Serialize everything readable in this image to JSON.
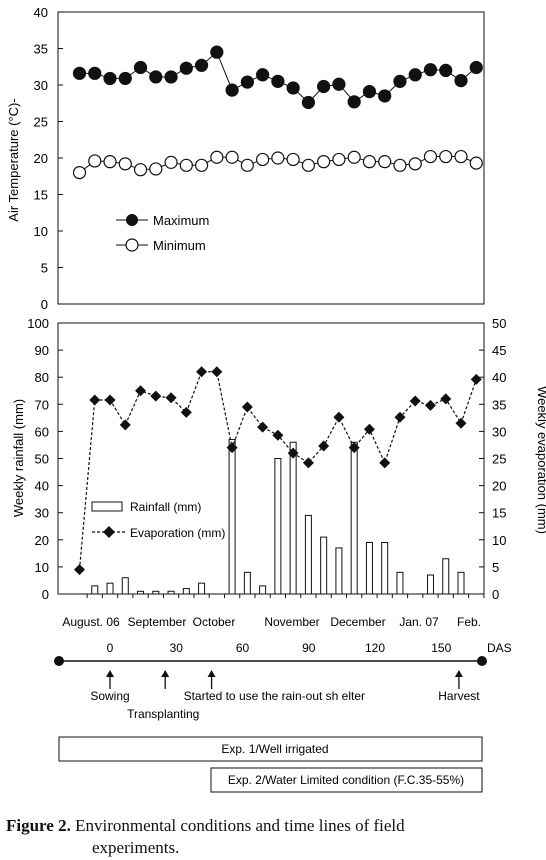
{
  "chart_data": [
    {
      "type": "scatter",
      "ylabel": "Air Temperature (°C)-",
      "ylim": [
        0,
        40
      ],
      "yticks": [
        "0",
        "5",
        "10",
        "15",
        "20",
        "25",
        "30",
        "35",
        "40"
      ],
      "series": [
        {
          "name": "Maximum",
          "marker": "filled-circle",
          "connected": true,
          "values": [
            31.6,
            31.6,
            30.9,
            30.9,
            32.4,
            31.1,
            31.1,
            32.3,
            32.7,
            34.5,
            29.3,
            30.4,
            31.4,
            30.5,
            29.6,
            27.6,
            29.8,
            30.1,
            27.7,
            29.1,
            28.5,
            30.5,
            31.4,
            32.1,
            32.0,
            30.6,
            32.4
          ]
        },
        {
          "name": "Minimum",
          "marker": "open-circle",
          "connected": true,
          "values": [
            18.0,
            19.6,
            19.5,
            19.2,
            18.4,
            18.5,
            19.4,
            19.0,
            19.0,
            20.1,
            20.1,
            19.0,
            19.8,
            20.0,
            19.8,
            19.0,
            19.5,
            19.8,
            20.1,
            19.5,
            19.5,
            19.0,
            19.2,
            20.2,
            20.2,
            20.2,
            19.3
          ]
        }
      ],
      "legend_position": "lower-left",
      "grid": false
    },
    {
      "type": "bar",
      "ylabel": "Weekly rainfall (mm)",
      "y2label": "Weekly evaporation (mm)",
      "ylim": [
        0,
        100
      ],
      "y2lim": [
        0,
        50
      ],
      "yticks": [
        "0",
        "10",
        "20",
        "30",
        "40",
        "50",
        "60",
        "70",
        "80",
        "90",
        "100"
      ],
      "y2ticks": [
        "0",
        "5",
        "10",
        "15",
        "20",
        "25",
        "30",
        "35",
        "40",
        "45",
        "50"
      ],
      "month_labels": [
        "August. 06",
        "September",
        "October",
        "November",
        "December",
        "Jan. 07",
        "Feb."
      ],
      "series": [
        {
          "name": "Rainfall (mm)",
          "type": "bar",
          "axis": "left",
          "values": [
            0,
            3,
            4,
            6,
            1,
            1,
            1,
            2,
            4,
            0,
            57,
            8,
            3,
            50,
            56,
            29,
            21,
            17,
            56,
            19,
            19,
            8,
            0,
            7,
            13,
            8,
            0
          ]
        },
        {
          "name": "Evaporation (mm)",
          "type": "line-diamond-dashed",
          "axis": "right",
          "values": [
            4.5,
            35.8,
            35.8,
            31.2,
            37.5,
            36.5,
            36.2,
            33.5,
            41.0,
            41.0,
            27.0,
            34.5,
            30.8,
            29.3,
            26.0,
            24.2,
            27.3,
            32.6,
            27.0,
            30.4,
            24.2,
            32.6,
            35.6,
            34.8,
            36.0,
            31.5,
            39.6
          ]
        }
      ],
      "legend_position": "left-middle",
      "grid": false
    }
  ],
  "timeline": {
    "das_ticks": [
      "0",
      "30",
      "60",
      "90",
      "120",
      "150"
    ],
    "das_label": "DAS",
    "events": [
      {
        "label": "Sowing",
        "das": 0
      },
      {
        "label": "Transplanting",
        "das": 25
      },
      {
        "label": "Started to use the rain-out sh elter",
        "das": 46
      },
      {
        "label": "Harvest",
        "das": 158
      }
    ]
  },
  "experiments": {
    "exp1": "Exp. 1/Well irrigated",
    "exp2": "Exp. 2/Water Limited condition (F.C.35-55%)"
  },
  "caption": {
    "label": "Figure 2.",
    "text_line1": "Environmental conditions and time lines of field",
    "text_line2": "experiments."
  }
}
